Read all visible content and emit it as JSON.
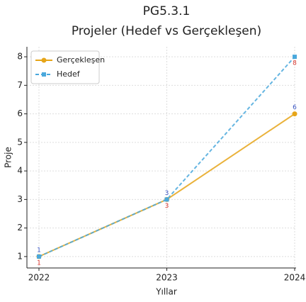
{
  "chart_data": {
    "type": "line",
    "title": "PG5.3.1",
    "subtitle": "Projeler (Hedef vs Gerçekleşen)",
    "x_label": "Yıllar",
    "y_label": "Proje",
    "categories": [
      "2022",
      "2023",
      "2024"
    ],
    "series": [
      {
        "name": "Gerçekleşen",
        "color": "#e6a519",
        "label_color": "#3b55c4",
        "dashed": false,
        "marker": "circle",
        "values": [
          1,
          3,
          6
        ]
      },
      {
        "name": "Hedef",
        "color": "#4aa8dc",
        "label_color": "#d9342b",
        "dashed": true,
        "marker": "square",
        "values": [
          1,
          3,
          8
        ]
      }
    ],
    "ylim": [
      0.6,
      8.35
    ],
    "yticks": [
      1,
      2,
      3,
      4,
      5,
      6,
      7,
      8
    ],
    "grid": true,
    "legend": "upper left"
  }
}
